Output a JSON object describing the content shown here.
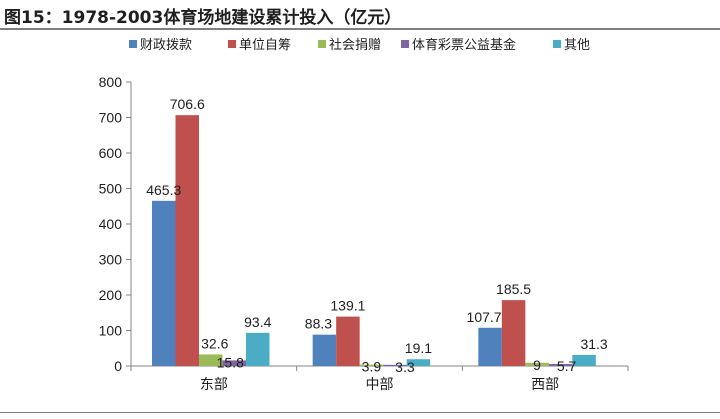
{
  "figure": {
    "title": "图15：1978-2003体育场地建设累计投入（亿元）"
  },
  "chart_data": {
    "type": "bar",
    "categories": [
      "东部",
      "中部",
      "西部"
    ],
    "series": [
      {
        "name": "财政拨款",
        "values": [
          465.3,
          88.3,
          107.7
        ],
        "labels": [
          "465.3",
          "88.3",
          "107.7"
        ],
        "color": "#4f81bd"
      },
      {
        "name": "单位自筹",
        "values": [
          706.6,
          139.1,
          185.5
        ],
        "labels": [
          "706.6",
          "139.1",
          "185.5"
        ],
        "color": "#c0504d"
      },
      {
        "name": "社会捐赠",
        "values": [
          32.6,
          3.9,
          9
        ],
        "labels": [
          "32.6",
          "3.9",
          "9"
        ],
        "color": "#9bbb59"
      },
      {
        "name": "体育彩票公益基金",
        "values": [
          15.8,
          3.3,
          5.7
        ],
        "labels": [
          "15.8",
          "3.3",
          "5.7"
        ],
        "color": "#8064a2"
      },
      {
        "name": "其他",
        "values": [
          93.4,
          19.1,
          31.3
        ],
        "labels": [
          "93.4",
          "19.1",
          "31.3"
        ],
        "color": "#4bacc6"
      }
    ],
    "ylim": [
      0,
      800
    ],
    "yticks": [
      0,
      100,
      200,
      300,
      400,
      500,
      600,
      700,
      800
    ],
    "xlabel": "",
    "ylabel": "",
    "grid": false,
    "legend_position": "top"
  }
}
